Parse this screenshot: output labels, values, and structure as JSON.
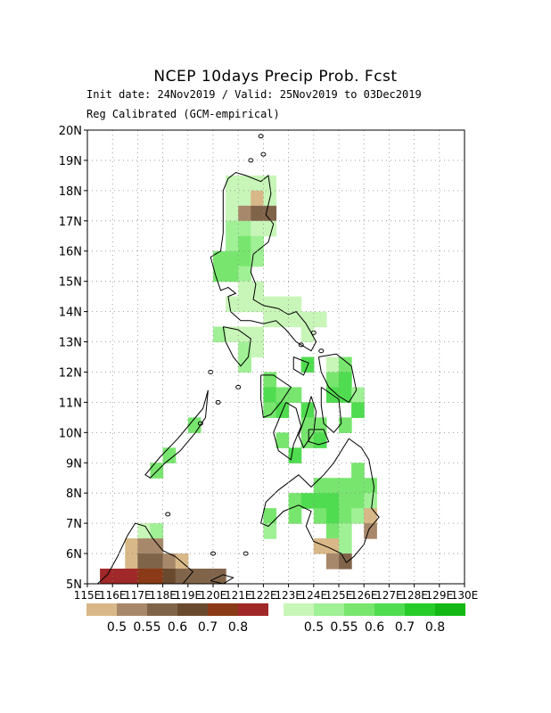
{
  "header": {
    "title": "NCEP 10days Precip Prob. Fcst",
    "subtitle_line1": "Init date: 24Nov2019 / Valid: 25Nov2019 to 03Dec2019",
    "subtitle_line2": "Reg Calibrated (GCM-empirical)"
  },
  "map": {
    "lon_range": [
      115,
      130
    ],
    "lat_range": [
      5,
      20
    ],
    "grid": "dotted",
    "lat_labels": [
      "5N",
      "6N",
      "7N",
      "8N",
      "9N",
      "10N",
      "11N",
      "12N",
      "13N",
      "14N",
      "15N",
      "16N",
      "17N",
      "18N",
      "19N",
      "20N"
    ],
    "lon_labels": [
      "115E",
      "116E",
      "117E",
      "118E",
      "119E",
      "120E",
      "121E",
      "122E",
      "123E",
      "124E",
      "125E",
      "126E",
      "127E",
      "128E",
      "129E",
      "130E"
    ]
  },
  "legend": {
    "dry": {
      "colors": [
        "#d8b888",
        "#a8886a",
        "#80644a",
        "#6a4a2e",
        "#8a3a16",
        "#a02828"
      ],
      "labels": [
        "0.5",
        "0.55",
        "0.6",
        "0.7",
        "0.8"
      ]
    },
    "wet": {
      "colors": [
        "#c8f5b8",
        "#a0f096",
        "#78e66e",
        "#50dc50",
        "#28cc28",
        "#14b814"
      ],
      "labels": [
        "0.5",
        "0.55",
        "0.6",
        "0.7",
        "0.8"
      ]
    }
  }
}
